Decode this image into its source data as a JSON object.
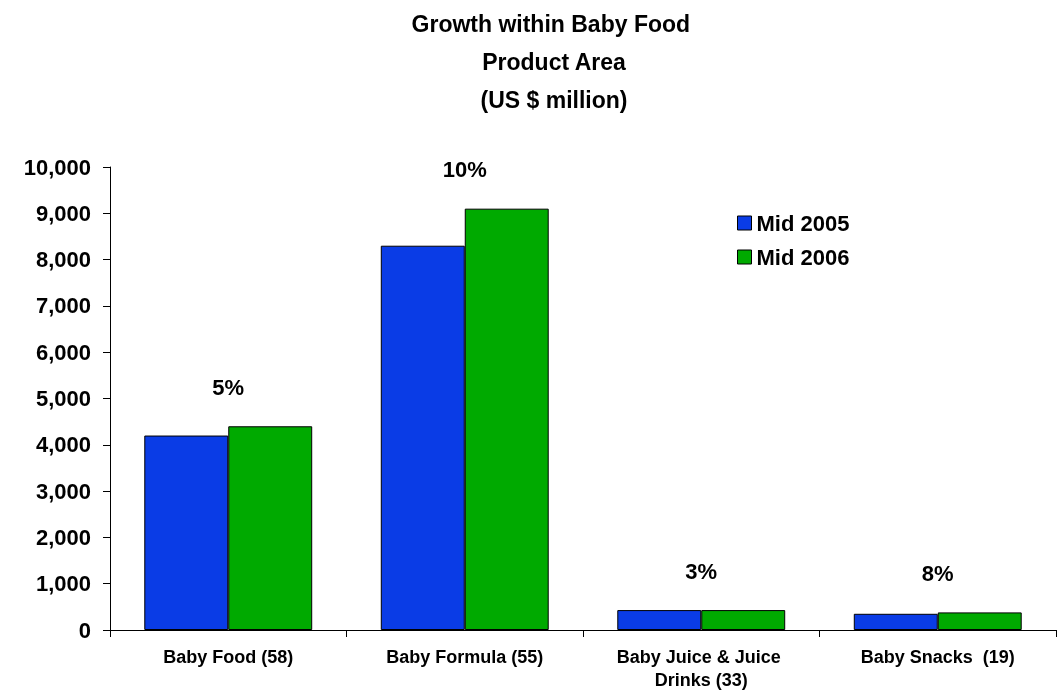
{
  "chart_data": {
    "type": "bar",
    "title": "Growth within Baby Food Product Area",
    "subtitle": "(US $ million)",
    "categories": [
      "Baby Food (58)",
      "Baby Formula (55)",
      "Baby Juice & Juice Drinks (33)",
      "Baby Snacks  (19)"
    ],
    "series": [
      {
        "name": "Mid 2005",
        "color": "#0a3ce6",
        "values": [
          4200,
          8300,
          430,
          350
        ]
      },
      {
        "name": "Mid 2006",
        "color": "#00aa00",
        "values": [
          4400,
          9100,
          430,
          380
        ]
      }
    ],
    "ylim": [
      0,
      10000
    ],
    "yticks": [
      0,
      {
        "value": 1000,
        "label": "1,000"
      },
      {
        "value": 2000,
        "label": "2,000"
      },
      {
        "value": 3000,
        "label": "3,000"
      },
      {
        "value": 4000,
        "label": "4,000"
      },
      {
        "value": 5000,
        "label": "5,000"
      },
      {
        "value": 6000,
        "label": "6,000"
      },
      {
        "value": 7000,
        "label": "7,000"
      },
      {
        "value": 8000,
        "label": "8,000"
      },
      {
        "value": 9000,
        "label": "9,000"
      },
      {
        "value": 10000,
        "label": "10,000"
      }
    ],
    "grid": false,
    "legend": "top right",
    "annotations": [
      "5%",
      "10%",
      "3%",
      "8%"
    ]
  }
}
